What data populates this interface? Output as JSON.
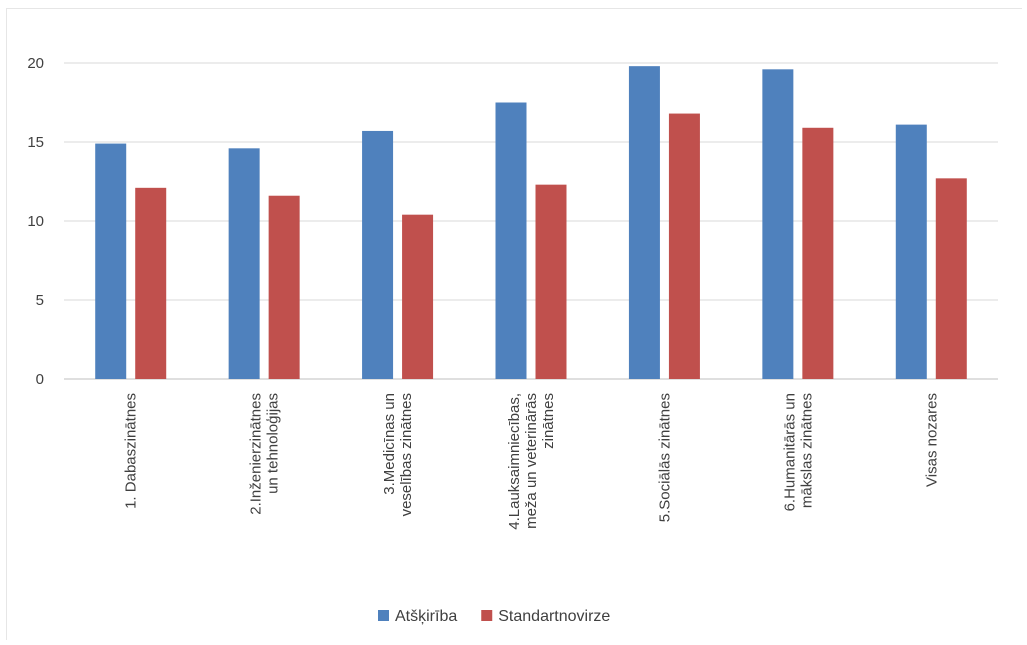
{
  "chart_data": {
    "type": "bar",
    "title": "",
    "xlabel": "",
    "ylabel": "",
    "ylim": [
      0,
      20
    ],
    "yticks": [
      0,
      5,
      10,
      15,
      20
    ],
    "grid": true,
    "legend_position": "bottom",
    "categories": [
      [
        "1. Dabaszinātnes"
      ],
      [
        "2.Inženierzinātnes",
        "un tehnoloģijas"
      ],
      [
        "3.Medicīnas un",
        "veselības zinātnes"
      ],
      [
        "4.Lauksaimniecības,",
        "meža un veterinārās",
        "zinātnes"
      ],
      [
        "5.Sociālās zinātnes"
      ],
      [
        "6.Humanitārās un",
        "mākslas zinātnes"
      ],
      [
        "Visas nozares"
      ]
    ],
    "series": [
      {
        "name": "Atšķirība",
        "color": "#4f81bd",
        "values": [
          14.9,
          14.6,
          15.7,
          17.5,
          19.8,
          19.6,
          16.1
        ]
      },
      {
        "name": "Standartnovirze",
        "color": "#c0504d",
        "values": [
          12.1,
          11.6,
          10.4,
          12.3,
          16.8,
          15.9,
          12.7
        ]
      }
    ]
  }
}
